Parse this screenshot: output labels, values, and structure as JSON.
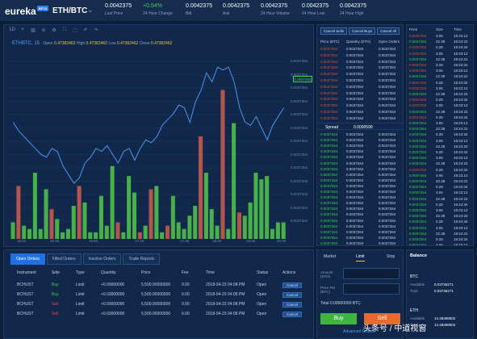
{
  "header": {
    "logo": "eureka",
    "logo_tag": "BETA",
    "pair": "ETH/BTC",
    "stats": [
      {
        "value": "0.0042375",
        "label": "Last Price",
        "color": "white"
      },
      {
        "value": "+0.94%",
        "label": "24 Hour Change",
        "color": "green"
      },
      {
        "value": "0.0042375",
        "label": "Bid",
        "color": "white"
      },
      {
        "value": "0.0042375",
        "label": "Ask",
        "color": "white"
      },
      {
        "value": "0.0042375",
        "label": "24 Hour Volume",
        "color": "white"
      },
      {
        "value": "0.0042375",
        "label": "24 Hour Low",
        "color": "white"
      },
      {
        "value": "0.0042375",
        "label": "24 Hour High",
        "color": "white"
      }
    ]
  },
  "chart_toolbar": [
    "1D",
    "+",
    "▥",
    "≋",
    "⚙",
    "⛶",
    "⬚",
    "↶",
    "↷"
  ],
  "chart_info": {
    "symbol": "ETHBTC, 15",
    "open_label": "Open",
    "open": "0.47382462",
    "high_label": "High",
    "high": "0.47382462",
    "low_label": "Low",
    "low": "0.47382462",
    "close_label": "Close",
    "close": "0.47382462"
  },
  "chart_data": {
    "type": "bar",
    "x_ticks": [
      "15:24",
      "15:40",
      "16:50",
      "17:15",
      "17:48",
      "18:40",
      "19:40",
      "20:46"
    ],
    "y_ticks": [
      "0.0037264",
      "0.0037264",
      "0.0037264",
      "0.0037264",
      "0.0037264",
      "0.0037264",
      "0.0037264",
      "0.0037264",
      "0.0037264",
      "0.0037264",
      "0.0037264",
      "0.0037264",
      "0.0037264"
    ],
    "current_price_label": "0.0037264",
    "series": [
      {
        "kind": "volume_bars",
        "values": [
          0.1,
          0.32,
          0.08,
          0.06,
          0.4,
          0.06,
          0.3,
          0.18,
          0.12,
          0.04,
          0.06,
          0.2,
          0.32,
          0.22,
          0.04,
          0.04,
          0.26,
          0.08,
          0.44,
          0.1,
          0.04,
          0.38,
          0.28,
          0.04,
          0.08,
          0.3,
          0.32,
          0.04,
          0.08,
          0.26,
          0.1,
          0.06,
          0.14,
          0.2,
          0.62,
          0.4,
          0.18,
          0.08,
          0.9,
          0.06,
          0.7,
          0.16,
          0.14,
          0.22,
          0.4,
          0.36,
          0.38,
          0.06,
          0.1,
          0.1
        ]
      },
      {
        "kind": "bar_color",
        "values": [
          "g",
          "r",
          "g",
          "g",
          "g",
          "g",
          "g",
          "r",
          "g",
          "g",
          "g",
          "g",
          "r",
          "g",
          "g",
          "g",
          "g",
          "g",
          "g",
          "r",
          "g",
          "g",
          "g",
          "r",
          "g",
          "r",
          "g",
          "g",
          "r",
          "g",
          "g",
          "g",
          "g",
          "g",
          "r",
          "g",
          "g",
          "g",
          "r",
          "g",
          "g",
          "r",
          "g",
          "g",
          "g",
          "g",
          "g",
          "g",
          "g",
          "g"
        ]
      },
      {
        "kind": "price_line",
        "values": [
          0.42,
          0.48,
          0.52,
          0.56,
          0.6,
          0.64,
          0.66,
          0.6,
          0.62,
          0.72,
          0.78,
          0.84,
          0.8,
          0.7,
          0.66,
          0.6,
          0.62,
          0.58,
          0.64,
          0.7,
          0.62,
          0.6,
          0.68,
          0.6,
          0.54,
          0.56,
          0.52,
          0.44,
          0.4,
          0.36,
          0.3,
          0.32,
          0.42,
          0.28,
          0.2,
          0.08,
          0.14,
          0.04,
          0.06,
          0.04,
          0.14,
          0.32,
          0.42,
          0.44,
          0.38,
          0.46,
          0.54,
          0.44,
          0.38,
          0.32
        ]
      }
    ]
  },
  "order_tabs": [
    "Open Orders",
    "Filled Orders",
    "Inactive Orders",
    "Trade Reports"
  ],
  "orders": {
    "headers": [
      "Instrument",
      "Side",
      "Type",
      "Quantity",
      "Price",
      "Fee",
      "Time",
      "Status",
      "Actions"
    ],
    "rows": [
      {
        "instrument": "BCHUST",
        "side": "Buy",
        "type": "Limit",
        "quantity": "+0.03000000",
        "price": "5,500.00000000",
        "fee": "0.00",
        "time": "2018-04-23 04:08 PM",
        "status": "Open",
        "action": "Cancel"
      },
      {
        "instrument": "BCHUST",
        "side": "Buy",
        "type": "Limit",
        "quantity": "+0.03000000",
        "price": "5,500.00000000",
        "fee": "0.00",
        "time": "2018-04-23 04:08 PM",
        "status": "Open",
        "action": "Cancel"
      },
      {
        "instrument": "BCHUST",
        "side": "Sell",
        "type": "Limit",
        "quantity": "+0.03000000",
        "price": "5,500.00000000",
        "fee": "0.00",
        "time": "2018-04-23 04:08 PM",
        "status": "Open",
        "action": "Cancel"
      },
      {
        "instrument": "BCHUST",
        "side": "Sell",
        "type": "Limit",
        "quantity": "+0.03000000",
        "price": "5,500.00000000",
        "fee": "0.00",
        "time": "2018-04-23 04:08 PM",
        "status": "Open",
        "action": "Cancel"
      }
    ]
  },
  "order_book": {
    "buttons": [
      "Cancel Sells",
      "Cancel Buys",
      "Cancel All"
    ],
    "headers": [
      "Price (BTC)",
      "Quantity (ETH)",
      "Open Orders"
    ],
    "sell_rows": [
      [
        "0.0037264",
        "0.0037264",
        "0.0037264"
      ],
      [
        "0.0037264",
        "0.0037264",
        "0.0037264"
      ],
      [
        "0.0037264",
        "0.0037264",
        "0.0037264"
      ],
      [
        "0.0037264",
        "0.0037264",
        "0.0037264"
      ],
      [
        "0.0037264",
        "0.0037264",
        "0.0037264"
      ],
      [
        "0.0037264",
        "0.0037264",
        "0.0037264"
      ],
      [
        "0.0037264",
        "0.0037264",
        "0.0037264"
      ],
      [
        "0.0037264",
        "0.0037264",
        "0.0037264"
      ],
      [
        "0.0037264",
        "0.0037264",
        "0.0037264"
      ],
      [
        "0.0037264",
        "0.0037264",
        "0.0037264"
      ],
      [
        "0.0037264",
        "0.0037264",
        "0.0037264"
      ],
      [
        "0.0037264",
        "0.0037264",
        "0.0037264"
      ]
    ],
    "spread_label": "Spread",
    "spread_value": "0.0000599",
    "buy_rows": [
      [
        "0.0037264",
        "0.0037264",
        "0.0037264"
      ],
      [
        "0.0037264",
        "0.0037264",
        "0.0037264"
      ],
      [
        "0.0037264",
        "0.0037264",
        "0.0037264"
      ],
      [
        "0.0037264",
        "0.0037264",
        "0.0037264"
      ],
      [
        "0.0037264",
        "0.0037264",
        "0.0037264"
      ],
      [
        "0.0037264",
        "0.0037264",
        "0.0037264"
      ],
      [
        "0.0037264",
        "0.0037264",
        "0.0037264"
      ],
      [
        "0.0037264",
        "0.0037264",
        "0.0037264"
      ],
      [
        "0.0037264",
        "0.0037264",
        "0.0037264"
      ],
      [
        "0.0037264",
        "0.0037264",
        "0.0037264"
      ],
      [
        "0.0037264",
        "0.0037264",
        "0.0037264"
      ],
      [
        "0.0037264",
        "0.0037264",
        "0.0037264"
      ],
      [
        "0.0037264",
        "0.0037264",
        "0.0037264"
      ],
      [
        "0.0037264",
        "0.0037264",
        "0.0037264"
      ],
      [
        "0.0037264",
        "0.0037264",
        "0.0037264"
      ],
      [
        "0.0037264",
        "0.0037264",
        "0.0037264"
      ],
      [
        "0.0037264",
        "0.0037264",
        "0.0037264"
      ],
      [
        "0.0037264",
        "0.0037264",
        "0.0037264"
      ],
      [
        "0.0037264",
        "0.0037264",
        "0.0037264"
      ],
      [
        "0.0037264",
        "0.0037264",
        "0.0037264"
      ]
    ]
  },
  "trades": {
    "headers": [
      "Price",
      "Size",
      "Time"
    ],
    "rows": [
      [
        "0.0037264",
        "3.06",
        "19:23:12",
        "r"
      ],
      [
        "0.0037264",
        "22.38",
        "19:24:22",
        "g"
      ],
      [
        "0.0037264",
        "0.28",
        "19:24:34",
        "r"
      ],
      [
        "0.0037264",
        "3.06",
        "19:23:12",
        "r"
      ],
      [
        "0.0037264",
        "22.38",
        "19:24:22",
        "g"
      ],
      [
        "0.0037264",
        "0.28",
        "19:24:34",
        "r"
      ],
      [
        "0.0037264",
        "3.06",
        "19:23:12",
        "r"
      ],
      [
        "0.0037264",
        "22.38",
        "19:24:22",
        "g"
      ],
      [
        "0.0037264",
        "0.28",
        "19:24:34",
        "r"
      ],
      [
        "0.0037264",
        "3.06",
        "19:23:12",
        "r"
      ],
      [
        "0.0037264",
        "22.38",
        "19:24:22",
        "g"
      ],
      [
        "0.0037264",
        "0.28",
        "19:24:34",
        "r"
      ],
      [
        "0.0037264",
        "3.06",
        "19:23:12",
        "r"
      ],
      [
        "0.0037264",
        "22.38",
        "19:24:22",
        "g"
      ],
      [
        "0.0037264",
        "0.28",
        "19:24:34",
        "r"
      ],
      [
        "0.0037264",
        "3.06",
        "19:23:12",
        "g"
      ],
      [
        "0.0037264",
        "22.38",
        "19:24:22",
        "g"
      ],
      [
        "0.0037264",
        "0.28",
        "19:24:34",
        "g"
      ],
      [
        "0.0037264",
        "3.06",
        "19:23:12",
        "g"
      ],
      [
        "0.0037264",
        "22.38",
        "19:24:22",
        "g"
      ],
      [
        "0.0037264",
        "0.28",
        "19:24:34",
        "g"
      ],
      [
        "0.0037264",
        "3.06",
        "19:23:12",
        "g"
      ],
      [
        "0.0037264",
        "22.38",
        "19:24:22",
        "g"
      ],
      [
        "0.0037264",
        "0.28",
        "19:24:34",
        "r"
      ],
      [
        "0.0037264",
        "3.06",
        "19:23:12",
        "g"
      ],
      [
        "0.0037264",
        "22.38",
        "19:24:22",
        "g"
      ],
      [
        "0.0037264",
        "0.28",
        "19:24:34",
        "g"
      ],
      [
        "0.0037264",
        "3.06",
        "19:23:12",
        "g"
      ],
      [
        "0.0037264",
        "22.38",
        "19:24:22",
        "g"
      ],
      [
        "0.0037264",
        "0.28",
        "19:24:34",
        "g"
      ],
      [
        "0.0037264",
        "3.06",
        "19:23:12",
        "g"
      ],
      [
        "0.0037264",
        "22.38",
        "19:24:22",
        "g"
      ],
      [
        "0.0037264",
        "0.28",
        "19:24:34",
        "g"
      ],
      [
        "0.0037264",
        "3.06",
        "19:23:12",
        "g"
      ],
      [
        "0.0037264",
        "22.38",
        "19:24:22",
        "g"
      ],
      [
        "0.0037264",
        "0.28",
        "19:24:34",
        "g"
      ],
      [
        "0.0037264",
        "3.06",
        "19:23:12",
        "g"
      ]
    ]
  },
  "trade_form": {
    "tabs": [
      "Market",
      "Limit",
      "Stop"
    ],
    "active_tab": "Limit",
    "amount_label": "Amount",
    "amount_unit": "(ETH)",
    "price_label": "Price Per",
    "price_unit": "(BTC)",
    "total_label": "Total",
    "total_value": "0.00000000 BTC",
    "buy_label": "Buy",
    "sell_label": "Sell",
    "advanced_label": "Advanced Orders"
  },
  "balance": {
    "title": "Balance",
    "currencies": [
      {
        "name": "BTC",
        "available_label": "Available",
        "available": "0.03736271",
        "total_label": "Total",
        "total": "0.03736271"
      },
      {
        "name": "ETH",
        "available_label": "Available",
        "available": "14.48398502",
        "total_label": "Total",
        "total": "14.48398502"
      }
    ]
  },
  "watermark": "头条号 / 中道视窗",
  "colors": {
    "bg": "#0d1f3a",
    "panel": "#11284a",
    "green": "#3ad34a",
    "red": "#e0513b",
    "accent": "#1f70e0",
    "line": "#4da3ff"
  }
}
